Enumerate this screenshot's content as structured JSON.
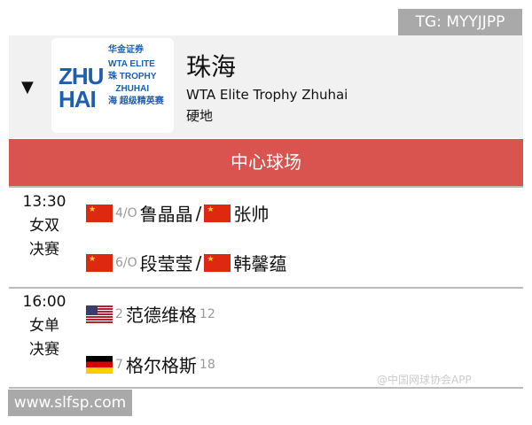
{
  "watermark_top": "TG: MYYJJPP",
  "watermark_bottom": "www.slfsp.com",
  "weibo_watermark": "@中国网球协会APP",
  "tournament": {
    "logo_text": "ZHUHAI 华金证券 WTA ELITE TROPHY ZHUHAI 珠海 超级精英赛",
    "title": "珠海",
    "subtitle": "WTA Elite Trophy Zhuhai",
    "surface": "硬地"
  },
  "court": "中心球场",
  "accent": "#d9534f",
  "matches": [
    {
      "time": "13:30",
      "event": "女双",
      "round": "决赛",
      "players": [
        {
          "flag": "china",
          "seed": "4/O",
          "name": "鲁晶晶",
          "sep": "/",
          "flag2": "china",
          "name2": "张帅"
        },
        {
          "flag": "china",
          "seed": "6/O",
          "name": "段莹莹",
          "sep": "/",
          "flag2": "china",
          "name2": "韩馨蕴"
        }
      ]
    },
    {
      "time": "16:00",
      "event": "女单",
      "round": "决赛",
      "players": [
        {
          "flag": "usa",
          "seed": "2",
          "name": "范德维格",
          "rank": "12"
        },
        {
          "flag": "germany",
          "seed": "7",
          "name": "格尔格斯",
          "rank": "18"
        }
      ]
    }
  ]
}
